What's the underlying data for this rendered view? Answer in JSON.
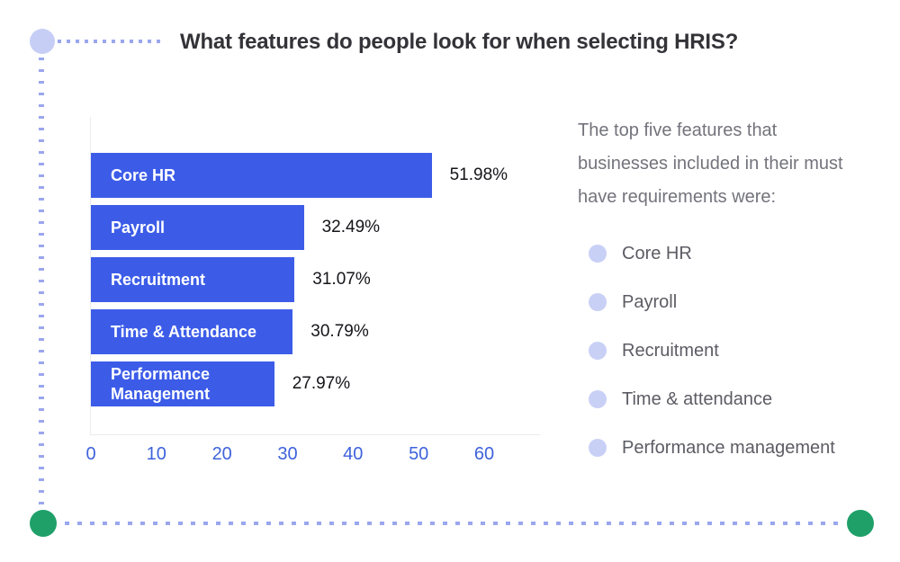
{
  "page": {
    "title": "What features do people look for when selecting HRIS?"
  },
  "chart_data": {
    "type": "bar",
    "orientation": "horizontal",
    "title": "What features do people look for when selecting HRIS?",
    "categories": [
      "Core HR",
      "Payroll",
      "Recruitment",
      "Time & Attendance",
      "Performance Management"
    ],
    "values": [
      51.98,
      32.49,
      31.07,
      30.79,
      27.97
    ],
    "value_labels": [
      "51.98%",
      "32.49%",
      "31.07%",
      "30.79%",
      "27.97%"
    ],
    "xlabel": "",
    "ylabel": "",
    "xlim": [
      0,
      60
    ],
    "xticks": [
      0,
      10,
      20,
      30,
      40,
      50,
      60
    ],
    "grid": false,
    "legend": "none",
    "bar_color": "#3c5ce8",
    "bar_label_color": "#ffffff",
    "value_label_color": "#141419",
    "tick_label_color": "#3e62dc"
  },
  "aside": {
    "intro": "The top five features that businesses included in their must have requirements were:",
    "items": [
      {
        "label": "Core HR"
      },
      {
        "label": "Payroll"
      },
      {
        "label": "Recruitment"
      },
      {
        "label": "Time & attendance"
      },
      {
        "label": "Performance management"
      }
    ],
    "bullet_color": "#c9d0f6"
  },
  "decor": {
    "corner_circle_lavender": "#c7cef6",
    "dotted_line_color": "#9aa7ee",
    "corner_circle_green": "#1fa069"
  }
}
